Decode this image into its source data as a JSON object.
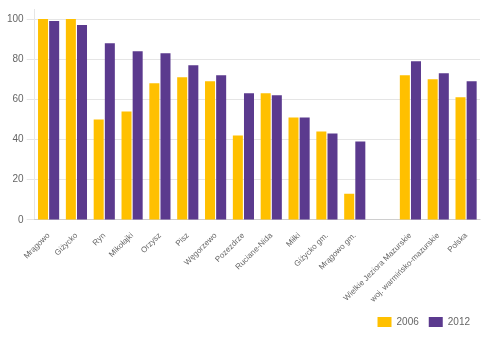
{
  "chart_data": {
    "type": "bar",
    "categories": [
      "Mrągowo",
      "Giżycko",
      "Ryn",
      "Mikołajki",
      "Orzysz",
      "Pisz",
      "Węgorzewo",
      "Pozezdrze",
      "Ruciane-Nida",
      "Miłki",
      "Giżycko gm.",
      "Mrągowo gm.",
      null,
      "Wielkie Jeziora Mazurskie",
      "woj. warmińsko-mazurskie",
      "Polska"
    ],
    "series": [
      {
        "name": "2006",
        "color": "#FFC000",
        "values": [
          100,
          100,
          50,
          54,
          68,
          71,
          69,
          42,
          63,
          51,
          44,
          13,
          null,
          72,
          70,
          61
        ]
      },
      {
        "name": "2012",
        "color": "#5B3A8E",
        "values": [
          99,
          97,
          88,
          84,
          83,
          77,
          72,
          63,
          62,
          51,
          43,
          39,
          null,
          79,
          73,
          69
        ]
      }
    ],
    "ylim": [
      0,
      105
    ],
    "yticks": [
      0,
      20,
      40,
      60,
      80,
      100
    ],
    "grid": true,
    "legend": "lower right"
  }
}
